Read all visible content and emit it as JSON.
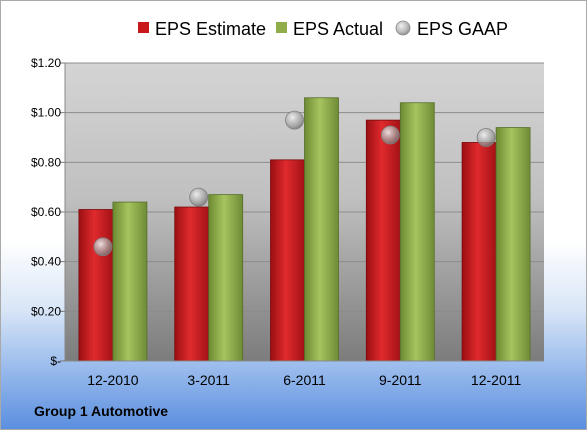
{
  "chart_data": {
    "type": "bar",
    "categories": [
      "12-2010",
      "3-2011",
      "6-2011",
      "9-2011",
      "12-2011"
    ],
    "series": [
      {
        "name": "EPS Estimate",
        "type": "bar",
        "color": "#c8181c",
        "values": [
          0.61,
          0.62,
          0.81,
          0.97,
          0.88
        ]
      },
      {
        "name": "EPS Actual",
        "type": "bar",
        "color": "#8fae4a",
        "values": [
          0.64,
          0.67,
          1.06,
          1.04,
          0.94
        ]
      },
      {
        "name": "EPS GAAP",
        "type": "scatter",
        "color": "#a0a0a0",
        "values": [
          0.46,
          0.66,
          0.97,
          0.91,
          0.9
        ]
      }
    ],
    "ylim": [
      0,
      1.2
    ],
    "yticks": [
      0,
      0.2,
      0.4,
      0.6,
      0.8,
      1.0,
      1.2
    ],
    "ytick_labels": [
      "$-",
      "$0.20",
      "$0.40",
      "$0.60",
      "$0.80",
      "$1.00",
      "$1.20"
    ],
    "grid": true,
    "legend_position": "top"
  },
  "footer": {
    "company": "Group 1 Automotive"
  }
}
